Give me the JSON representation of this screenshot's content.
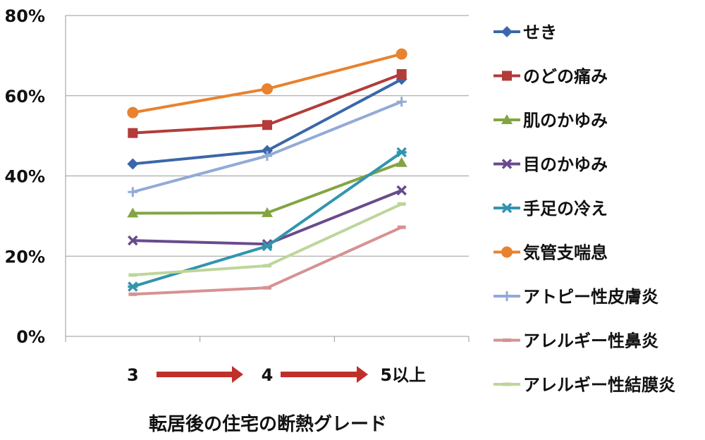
{
  "chart_data": {
    "type": "line",
    "title": "",
    "xlabel": "転居後の住宅の断熱グレード",
    "ylabel": "",
    "categories": [
      "3",
      "4",
      "5以上"
    ],
    "ylim": [
      0,
      80
    ],
    "yticks": [
      "0%",
      "20%",
      "40%",
      "60%",
      "80%"
    ],
    "ytick_values": [
      0,
      20,
      40,
      60,
      80
    ],
    "grid": "horizontal",
    "legend_position": "right",
    "series": [
      {
        "name": "せき",
        "values": [
          43.0,
          46.3,
          64.1
        ],
        "color": "#3B67A9",
        "marker": "diamond"
      },
      {
        "name": "のどの痛み",
        "values": [
          50.7,
          52.7,
          65.4
        ],
        "color": "#B33B39",
        "marker": "square"
      },
      {
        "name": "肌のかゆみ",
        "values": [
          30.7,
          30.8,
          43.3
        ],
        "color": "#84A443",
        "marker": "triangle"
      },
      {
        "name": "目のかゆみ",
        "values": [
          23.9,
          23.0,
          36.4
        ],
        "color": "#684B8C",
        "marker": "x"
      },
      {
        "name": "手足の冷え",
        "values": [
          12.4,
          22.5,
          45.9
        ],
        "color": "#3295AE",
        "marker": "star"
      },
      {
        "name": "気管支喘息",
        "values": [
          55.8,
          61.7,
          70.4
        ],
        "color": "#E8822E",
        "marker": "circle"
      },
      {
        "name": "アトピー性皮膚炎",
        "values": [
          36.0,
          45.0,
          58.5
        ],
        "color": "#93AAD7",
        "marker": "plus"
      },
      {
        "name": "アレルギー性鼻炎",
        "values": [
          10.5,
          12.1,
          27.2
        ],
        "color": "#D69291",
        "marker": "dash"
      },
      {
        "name": "アレルギー性結膜炎",
        "values": [
          15.3,
          17.6,
          33.0
        ],
        "color": "#BDD699",
        "marker": "dash"
      }
    ],
    "arrow_color": "#C0302B"
  }
}
